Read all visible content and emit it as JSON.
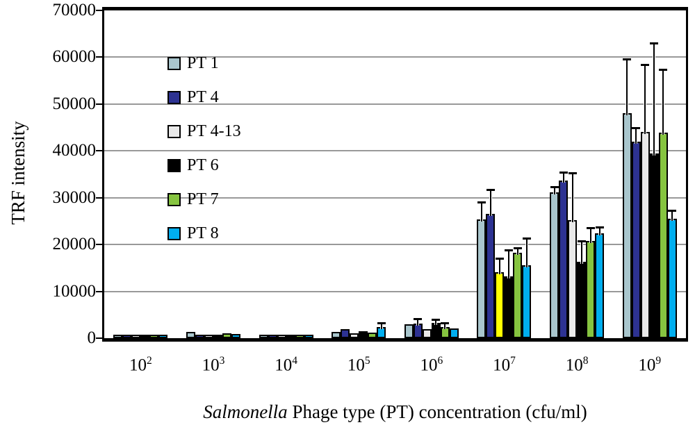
{
  "figure": {
    "y_axis_title": "TRF intensity",
    "x_axis_title_italic": "Salmonella",
    "x_axis_title_rest": " Phage type (PT) concentration (cfu/ml)"
  },
  "chart_data": {
    "type": "bar",
    "title": "",
    "xlabel": "Salmonella Phage type (PT) concentration (cfu/ml)",
    "ylabel": "TRF intensity",
    "ylim": [
      0,
      70000
    ],
    "y_tick_step": 10000,
    "y_tick_labels": [
      "0",
      "10000",
      "20000",
      "30000",
      "40000",
      "50000",
      "60000",
      "70000"
    ],
    "grid": true,
    "legend_position": "upper-left-inside",
    "categories": [
      "10^2",
      "10^3",
      "10^4",
      "10^5",
      "10^6",
      "10^7",
      "10^8",
      "10^9"
    ],
    "category_base": "10",
    "category_exponents": [
      2,
      3,
      4,
      5,
      6,
      7,
      8,
      9
    ],
    "series": [
      {
        "name": "PT 1",
        "color": "#A9C6CD",
        "values": [
          400,
          1400,
          800,
          1300,
          2900,
          25400,
          31100,
          48000
        ],
        "error_tops": [
          null,
          null,
          null,
          null,
          null,
          29100,
          32300,
          59600
        ]
      },
      {
        "name": "PT 4",
        "color": "#2D3292",
        "values": [
          450,
          600,
          780,
          2000,
          3100,
          26600,
          33600,
          42000
        ],
        "error_tops": [
          null,
          null,
          null,
          null,
          4100,
          31700,
          35400,
          44900
        ]
      },
      {
        "name": "PT 4-13",
        "color": "#E9E9E9",
        "values": [
          400,
          700,
          650,
          1000,
          1900,
          14100,
          25200,
          44000
        ],
        "error_tops": [
          null,
          null,
          null,
          null,
          null,
          17000,
          35300,
          58400
        ]
      },
      {
        "name": "PT 6",
        "color": "#000000",
        "values": [
          350,
          450,
          550,
          1500,
          3200,
          13200,
          16300,
          39500
        ],
        "error_tops": [
          null,
          null,
          null,
          null,
          4000,
          18900,
          20800,
          63100
        ]
      },
      {
        "name": "PT 7",
        "color": "#86C440",
        "values": [
          450,
          1050,
          700,
          1200,
          2400,
          18300,
          20700,
          43900
        ],
        "error_tops": [
          null,
          null,
          null,
          null,
          3200,
          19300,
          23600,
          57400
        ]
      },
      {
        "name": "PT 8",
        "color": "#00AEEF",
        "values": [
          500,
          850,
          800,
          2300,
          2100,
          15500,
          22400,
          25500
        ],
        "error_tops": [
          null,
          null,
          null,
          3300,
          null,
          21400,
          23800,
          27300
        ]
      }
    ],
    "color_overrides": [
      {
        "series_index": 2,
        "group_index": 5,
        "color": "#FFFF00"
      }
    ],
    "axis_color": "#000000",
    "gridline_color": "#999999",
    "error_bar_color": "#000000"
  }
}
